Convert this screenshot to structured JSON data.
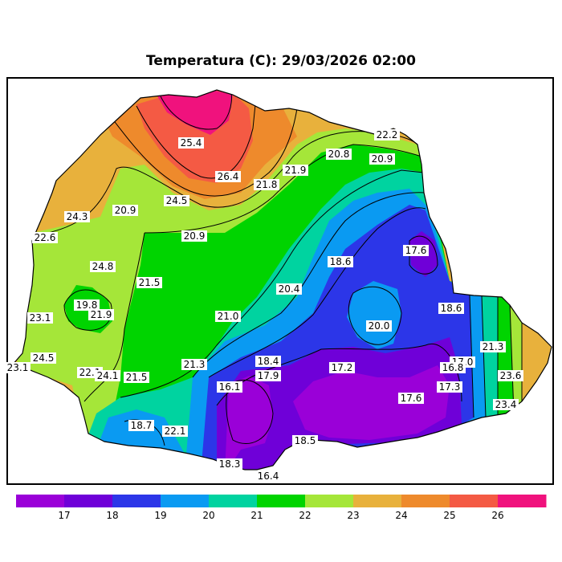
{
  "map": {
    "title": "Temperatura (C): 29/03/2026 02:00",
    "labels": [
      {
        "text": "25.4"
      },
      {
        "text": "22.2"
      },
      {
        "text": "20.8"
      },
      {
        "text": "20.9"
      },
      {
        "text": "26.4"
      },
      {
        "text": "21.9"
      },
      {
        "text": "21.8"
      },
      {
        "text": "24.5"
      },
      {
        "text": "20.9"
      },
      {
        "text": "24.3"
      },
      {
        "text": "22.6"
      },
      {
        "text": "20.9"
      },
      {
        "text": "24.8"
      },
      {
        "text": "18.6"
      },
      {
        "text": "17.6"
      },
      {
        "text": "21.5"
      },
      {
        "text": "20.4"
      },
      {
        "text": "19.8"
      },
      {
        "text": "21.9"
      },
      {
        "text": "18.6"
      },
      {
        "text": "23.1"
      },
      {
        "text": "21.0"
      },
      {
        "text": "20.0"
      },
      {
        "text": "21.3"
      },
      {
        "text": "24.5"
      },
      {
        "text": "23.1"
      },
      {
        "text": "18.4"
      },
      {
        "text": "17.0"
      },
      {
        "text": "16.8"
      },
      {
        "text": "21.3"
      },
      {
        "text": "22.1"
      },
      {
        "text": "24.1"
      },
      {
        "text": "21.5"
      },
      {
        "text": "17.9"
      },
      {
        "text": "17.2"
      },
      {
        "text": "23.6"
      },
      {
        "text": "16.1"
      },
      {
        "text": "17.3"
      },
      {
        "text": "17.6"
      },
      {
        "text": "23.4"
      },
      {
        "text": "18.7"
      },
      {
        "text": "22.1"
      },
      {
        "text": "18.5"
      },
      {
        "text": "18.3"
      },
      {
        "text": "16.4"
      }
    ]
  },
  "colorbar": {
    "colors": [
      "#9a00d8",
      "#6f00d8",
      "#2c36e8",
      "#0a9af2",
      "#00d3a0",
      "#00d400",
      "#a5e639",
      "#e8b13c",
      "#ee8a2c",
      "#f45a44",
      "#f0127d"
    ],
    "ticks": [
      "17",
      "18",
      "19",
      "20",
      "21",
      "22",
      "23",
      "24",
      "25",
      "26"
    ]
  }
}
